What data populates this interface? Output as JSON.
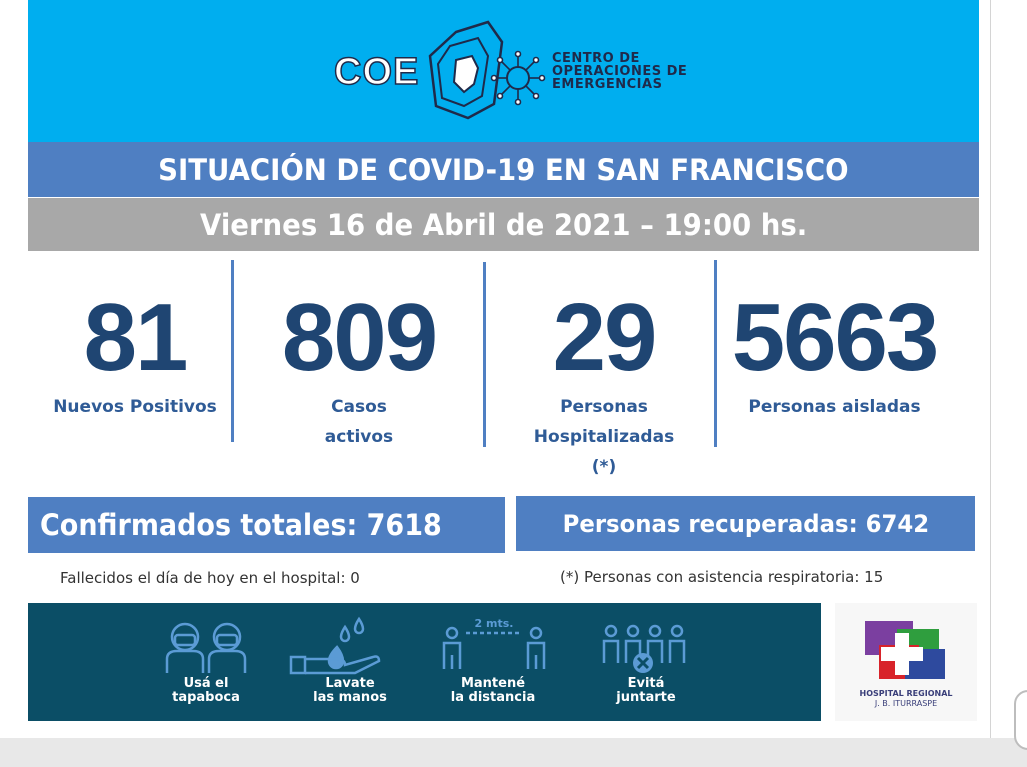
{
  "header": {
    "logo_mark": "COE",
    "logo_lines": [
      "CENTRO DE",
      "OPERACIONES DE",
      "EMERGENCIAS"
    ],
    "bg_color": "#00aeef"
  },
  "title": "SITUACIÓN DE COVID-19 EN SAN FRANCISCO",
  "date": "Viernes 16 de Abril de 2021 – 19:00 hs.",
  "stats": [
    {
      "value": "81",
      "label_lines": [
        "Nuevos Positivos"
      ]
    },
    {
      "value": "809",
      "label_lines": [
        "Casos",
        "activos"
      ]
    },
    {
      "value": "29",
      "label_lines": [
        "Personas",
        "Hospitalizadas",
        "(*)"
      ]
    },
    {
      "value": "5663",
      "label_lines": [
        "Personas aisladas"
      ]
    }
  ],
  "totals": {
    "confirmed": "Confirmados totales: 7618",
    "recovered": "Personas recuperadas: 6742"
  },
  "notes": {
    "deaths": "Fallecidos el día de hoy en el hospital:  0",
    "respiratory": "(*) Personas con asistencia respiratoria: 15"
  },
  "prevention": [
    {
      "icon": "mask-people-icon",
      "label_lines": [
        "Usá el",
        "tapaboca"
      ]
    },
    {
      "icon": "hand-wash-icon",
      "label_lines": [
        "Lavate",
        "las manos"
      ]
    },
    {
      "icon": "distance-icon",
      "label_lines": [
        "Mantené",
        "la distancia"
      ],
      "distance": "2 mts."
    },
    {
      "icon": "no-gathering-icon",
      "label_lines": [
        "Evitá",
        "juntarte"
      ]
    }
  ],
  "hospital": {
    "icon": "hospital-cross-logo",
    "name_lines": [
      "HOSPITAL REGIONAL",
      "J. B. ITURRASPE"
    ]
  },
  "colors": {
    "accent_blue": "#4f7fc2",
    "number_blue": "#1f4572",
    "date_gray": "#a8a8a8",
    "prevention_teal": "#0b4e66"
  }
}
